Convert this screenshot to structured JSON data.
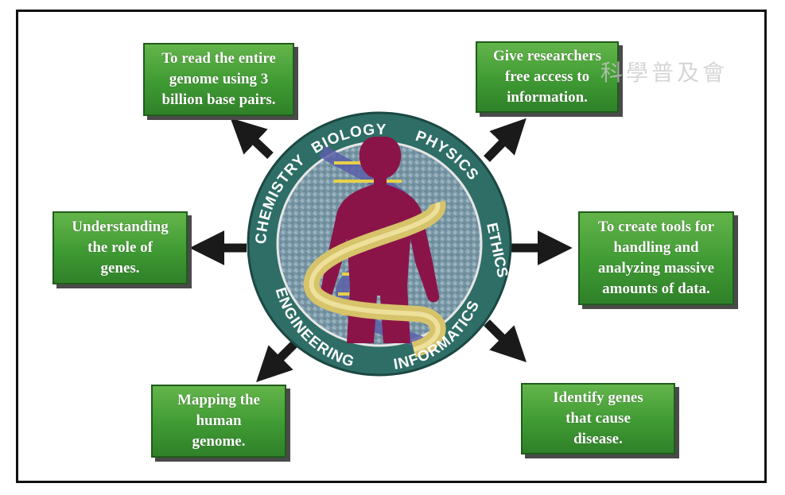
{
  "boxes": {
    "top_left": "To read the entire\ngenome using 3\nbillion base pairs.",
    "top_right": "Give researchers\nfree access to\ninformation.",
    "mid_left": "Understanding\nthe role of\ngenes.",
    "mid_right": "To create tools for\nhandling and\nanalyzing massive\namounts of data.",
    "bottom_left": "Mapping the\nhuman\ngenome.",
    "bottom_right": "Identify genes\nthat cause\ndisease."
  },
  "seal": {
    "ring_labels": [
      "CHEMISTRY",
      "BIOLOGY",
      "PHYSICS",
      "ETHICS",
      "INFORMATICS",
      "ENGINEERING"
    ]
  },
  "watermark": "科學普及會",
  "colors": {
    "box_green": "#3f9a33",
    "ring_teal": "#2e6e66",
    "figure_maroon": "#8a1448",
    "helix_gold": "#d7c36a",
    "arrow": "#1a1a1a"
  }
}
